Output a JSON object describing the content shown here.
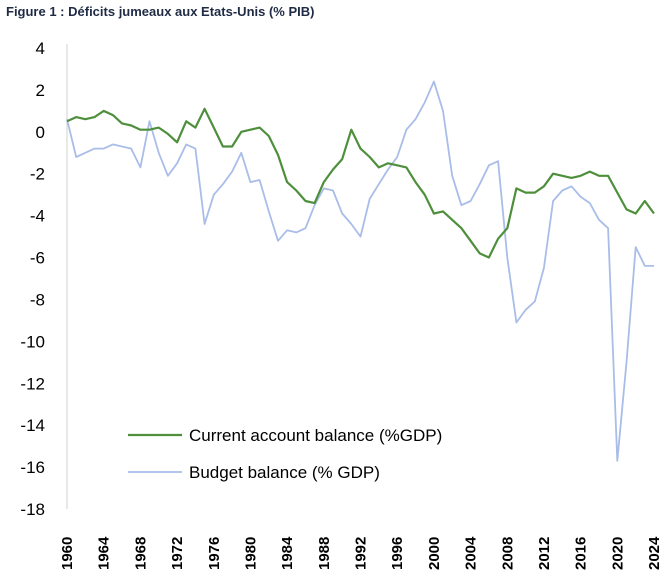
{
  "figure_title": "Figure 1 : Déficits jumeaux aux Etats-Unis (% PIB)",
  "chart_data": {
    "type": "line",
    "title": "Figure 1 : Déficits jumeaux aux Etats-Unis (% PIB)",
    "xlabel": "",
    "ylabel": "",
    "ylim": [
      -18,
      4
    ],
    "xlim": [
      1960,
      2024
    ],
    "yticks": [
      "4",
      "2",
      "0",
      "-2",
      "-4",
      "-6",
      "-8",
      "-10",
      "-12",
      "-14",
      "-16",
      "-18"
    ],
    "xticks": [
      "1960",
      "1964",
      "1968",
      "1972",
      "1976",
      "1980",
      "1984",
      "1988",
      "1992",
      "1996",
      "2000",
      "2004",
      "2008",
      "2012",
      "2016",
      "2020",
      "2024"
    ],
    "grid": false,
    "legend_position": "bottom-left",
    "x": [
      1960,
      1961,
      1962,
      1963,
      1964,
      1965,
      1966,
      1967,
      1968,
      1969,
      1970,
      1971,
      1972,
      1973,
      1974,
      1975,
      1976,
      1977,
      1978,
      1979,
      1980,
      1981,
      1982,
      1983,
      1984,
      1985,
      1986,
      1987,
      1988,
      1989,
      1990,
      1991,
      1992,
      1993,
      1994,
      1995,
      1996,
      1997,
      1998,
      1999,
      2000,
      2001,
      2002,
      2003,
      2004,
      2005,
      2006,
      2007,
      2008,
      2009,
      2010,
      2011,
      2012,
      2013,
      2014,
      2015,
      2016,
      2017,
      2018,
      2019,
      2020,
      2021,
      2022,
      2023,
      2024
    ],
    "series": [
      {
        "name": "Current account balance (%GDP)",
        "color": "#4e8f3c",
        "values": [
          0.5,
          0.7,
          0.6,
          0.7,
          1.0,
          0.8,
          0.4,
          0.3,
          0.1,
          0.1,
          0.2,
          -0.1,
          -0.5,
          0.5,
          0.2,
          1.1,
          0.2,
          -0.7,
          -0.7,
          0.0,
          0.1,
          0.2,
          -0.2,
          -1.1,
          -2.4,
          -2.8,
          -3.3,
          -3.4,
          -2.4,
          -1.8,
          -1.3,
          0.1,
          -0.8,
          -1.2,
          -1.7,
          -1.5,
          -1.6,
          -1.7,
          -2.4,
          -3.0,
          -3.9,
          -3.8,
          -4.2,
          -4.6,
          -5.2,
          -5.8,
          -6.0,
          -5.1,
          -4.6,
          -2.7,
          -2.9,
          -2.9,
          -2.6,
          -2.0,
          -2.1,
          -2.2,
          -2.1,
          -1.9,
          -2.1,
          -2.1,
          -2.9,
          -3.7,
          -3.9,
          -3.3,
          -3.9
        ]
      },
      {
        "name": "Budget balance (% GDP)",
        "color": "#a9bde8",
        "values": [
          0.6,
          -1.2,
          -1.0,
          -0.8,
          -0.8,
          -0.6,
          -0.7,
          -0.8,
          -1.7,
          0.5,
          -1.0,
          -2.1,
          -1.5,
          -0.6,
          -0.8,
          -4.4,
          -3.0,
          -2.5,
          -1.9,
          -1.0,
          -2.4,
          -2.3,
          -3.8,
          -5.2,
          -4.7,
          -4.8,
          -4.6,
          -3.5,
          -2.7,
          -2.8,
          -3.9,
          -4.4,
          -5.0,
          -3.2,
          -2.5,
          -1.8,
          -1.2,
          0.1,
          0.6,
          1.4,
          2.4,
          1.0,
          -2.1,
          -3.5,
          -3.3,
          -2.5,
          -1.6,
          -1.4,
          -6.0,
          -9.1,
          -8.5,
          -8.1,
          -6.5,
          -3.3,
          -2.8,
          -2.6,
          -3.1,
          -3.4,
          -4.2,
          -4.6,
          -15.7,
          -11.0,
          -5.5,
          -6.4,
          -6.4
        ]
      }
    ]
  }
}
